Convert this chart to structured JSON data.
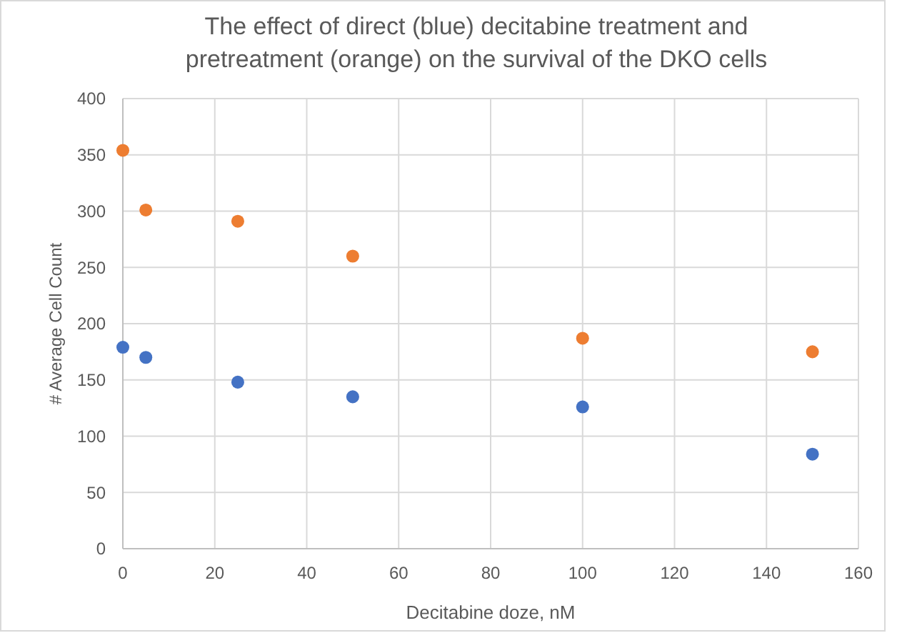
{
  "chart_data": {
    "type": "scatter",
    "title": "The effect of direct (blue) decitabine treatment and pretreatment (orange) on the survival of the DKO cells",
    "xlabel": "Decitabine doze, nM",
    "ylabel": "# Average Cell Count",
    "x": [
      0,
      5,
      25,
      50,
      100,
      150
    ],
    "series": [
      {
        "color": "#4472c4",
        "values": [
          179,
          170,
          148,
          135,
          126,
          84
        ]
      },
      {
        "color": "#ed7d31",
        "values": [
          354,
          301,
          291,
          260,
          187,
          175
        ]
      }
    ],
    "xlim": [
      0,
      160
    ],
    "xticks": [
      0,
      20,
      40,
      60,
      80,
      100,
      120,
      140,
      160
    ],
    "ylim": [
      0,
      400
    ],
    "yticks": [
      0,
      50,
      100,
      150,
      200,
      250,
      300,
      350,
      400
    ],
    "grid": true,
    "marker": "circle"
  }
}
